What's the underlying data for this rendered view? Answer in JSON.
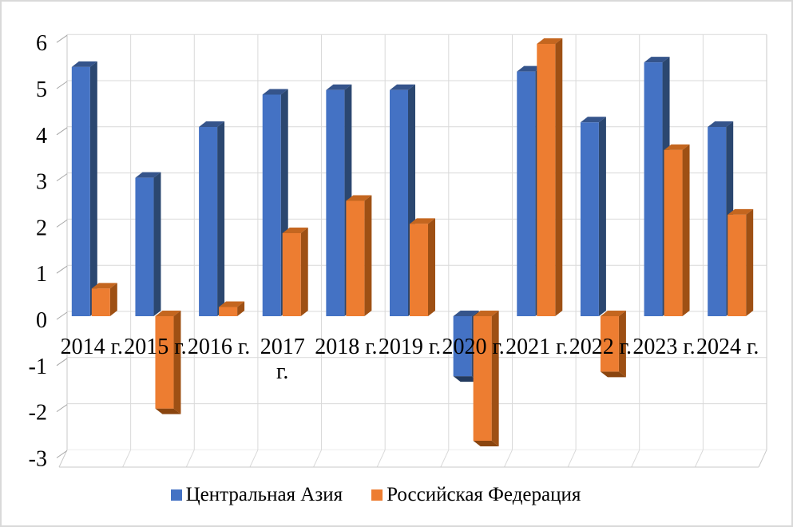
{
  "chart_data": {
    "type": "bar",
    "projection": "3d-clustered-column",
    "title": "",
    "xlabel": "",
    "ylabel": "",
    "categories": [
      "2014 г.",
      "2015 г.",
      "2016 г.",
      "2017 г.",
      "2018 г.",
      "2019 г.",
      "2020 г.",
      "2021 г.",
      "2022 г.",
      "2023 г.",
      "2024 г."
    ],
    "category_display": [
      [
        "2014 г."
      ],
      [
        "2015 г."
      ],
      [
        "2016 г."
      ],
      [
        "2017",
        "г."
      ],
      [
        "2018 г."
      ],
      [
        "2019 г."
      ],
      [
        "2020 г."
      ],
      [
        "2021 г."
      ],
      [
        "2022 г."
      ],
      [
        "2023 г."
      ],
      [
        "2024 г."
      ]
    ],
    "series": [
      {
        "name": "Центральная Азия",
        "values": [
          5.4,
          3.0,
          4.1,
          4.8,
          4.9,
          4.9,
          -1.3,
          5.3,
          4.2,
          5.5,
          4.1
        ],
        "shades": {
          "front": "#4472C4",
          "top": "#35548B",
          "side": "#2B4770",
          "bottom": "#233A5E"
        }
      },
      {
        "name": "Российская Федерация",
        "values": [
          0.6,
          -2.0,
          0.2,
          1.8,
          2.5,
          2.0,
          -2.7,
          5.9,
          -1.2,
          3.6,
          2.2
        ],
        "shades": {
          "front": "#ED7D31",
          "top": "#C4661F",
          "side": "#9E5014",
          "bottom": "#8A450F"
        }
      }
    ],
    "ylim": [
      -3,
      6
    ],
    "yticks": [
      6,
      5,
      4,
      3,
      2,
      1,
      0,
      -1,
      -2,
      -3
    ],
    "grid": true,
    "legend_position": "bottom",
    "colors": {
      "gridline": "#D9D9D9",
      "wall_edge": "#C9C9C9",
      "tick": "#A6A6A6",
      "chart_border": "#D9D9D9",
      "text": "#000000",
      "background": "#FFFFFF"
    }
  }
}
